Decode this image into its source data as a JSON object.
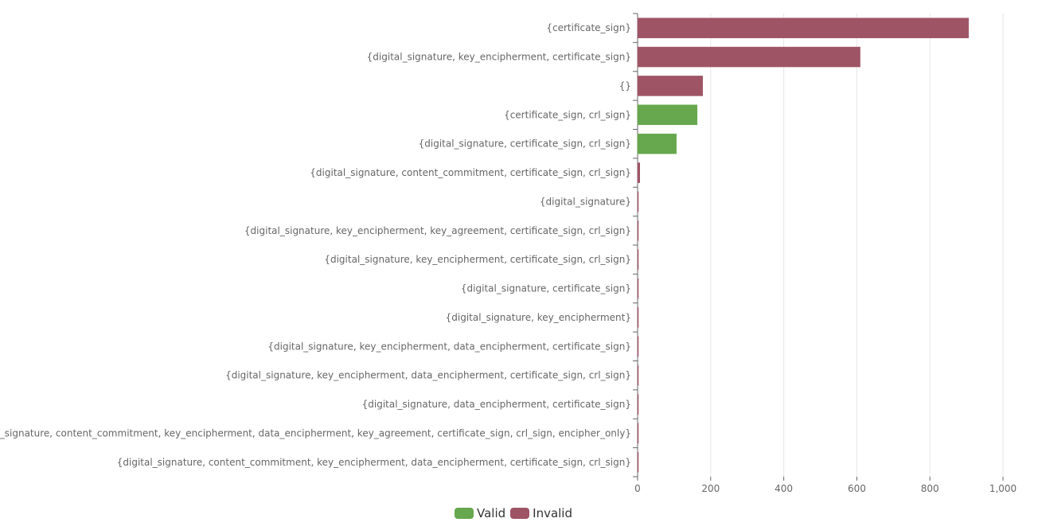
{
  "chart_data": {
    "type": "bar",
    "orientation": "horizontal",
    "categories": [
      "{certificate_sign}",
      "{digital_signature, key_encipherment, certificate_sign}",
      "{}",
      "{certificate_sign, crl_sign}",
      "{digital_signature, certificate_sign, crl_sign}",
      "{digital_signature, content_commitment, certificate_sign, crl_sign}",
      "{digital_signature}",
      "{digital_signature, key_encipherment, key_agreement, certificate_sign, crl_sign}",
      "{digital_signature, key_encipherment, certificate_sign, crl_sign}",
      "{digital_signature, certificate_sign}",
      "{digital_signature, key_encipherment}",
      "{digital_signature, key_encipherment, data_encipherment, certificate_sign}",
      "{digital_signature, key_encipherment, data_encipherment, certificate_sign, crl_sign}",
      "{digital_signature, data_encipherment, certificate_sign}",
      "{digital_signature, content_commitment, key_encipherment, data_encipherment, key_agreement, certificate_sign, crl_sign, encipher_only}",
      "{digital_signature, content_commitment, key_encipherment, data_encipherment, certificate_sign, crl_sign}"
    ],
    "series": [
      {
        "name": "Valid",
        "color": "#67a74d",
        "values": [
          0,
          0,
          0,
          163,
          106,
          0,
          0,
          0,
          0,
          0,
          0,
          0,
          0,
          0,
          0,
          0
        ]
      },
      {
        "name": "Invalid",
        "color": "#9e5465",
        "values": [
          906,
          609,
          178,
          0,
          0,
          6,
          1,
          1,
          1,
          1,
          1,
          0.5,
          0.5,
          0.5,
          0.5,
          0.5
        ]
      }
    ],
    "xlim": [
      0,
      1000
    ],
    "xticks": [
      0,
      200,
      400,
      600,
      800,
      1000
    ],
    "xtick_labels": [
      "0",
      "200",
      "400",
      "600",
      "800",
      "1,000"
    ],
    "grid": true,
    "legend_position": "bottom-center",
    "title": "",
    "xlabel": "",
    "ylabel": ""
  }
}
